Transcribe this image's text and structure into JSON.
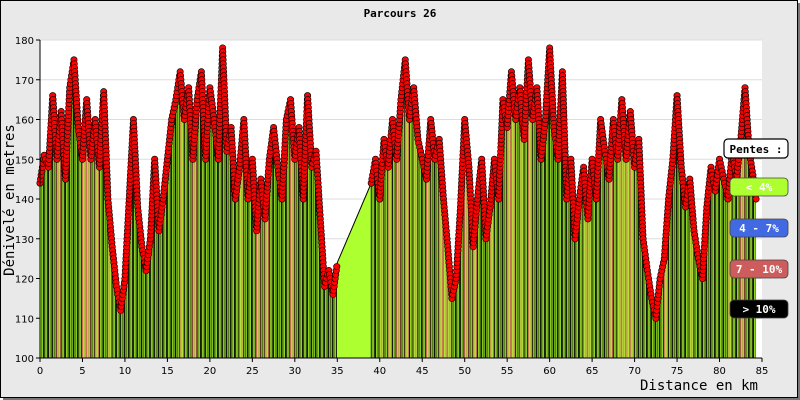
{
  "chart_data": {
    "type": "area",
    "title": "Parcours 26",
    "xlabel": "Distance en km",
    "ylabel": "Dénivelé en metres",
    "xlim": [
      0,
      85
    ],
    "ylim": [
      100,
      180
    ],
    "x_ticks": [
      0,
      5,
      10,
      15,
      20,
      25,
      30,
      35,
      40,
      45,
      50,
      55,
      60,
      65,
      70,
      75,
      80,
      85
    ],
    "y_ticks": [
      100,
      110,
      120,
      130,
      140,
      150,
      160,
      170,
      180
    ],
    "grid": true,
    "legend_position": "right",
    "legend": {
      "title": "Pentes :",
      "items": [
        {
          "label": "< 4%",
          "color": "#adff2f",
          "text_color": "#ffffff"
        },
        {
          "label": "4 - 7%",
          "color": "#4169e1",
          "text_color": "#ffffff"
        },
        {
          "label": "7 - 10%",
          "color": "#cd5c5c",
          "text_color": "#ffffff"
        },
        {
          "label": "> 10%",
          "color": "#000000",
          "text_color": "#ffffff"
        }
      ]
    },
    "series": [
      {
        "values": [
          [
            0,
            144
          ],
          [
            0.5,
            151
          ],
          [
            1,
            148
          ],
          [
            1.5,
            166
          ],
          [
            2,
            150
          ],
          [
            2.5,
            162
          ],
          [
            3,
            145
          ],
          [
            3.5,
            168
          ],
          [
            4,
            175
          ],
          [
            4.5,
            158
          ],
          [
            5,
            150
          ],
          [
            5.5,
            165
          ],
          [
            6,
            150
          ],
          [
            6.5,
            160
          ],
          [
            7,
            148
          ],
          [
            7.5,
            167
          ],
          [
            8,
            140
          ],
          [
            8.5,
            128
          ],
          [
            9,
            118
          ],
          [
            9.5,
            112
          ],
          [
            10,
            120
          ],
          [
            10.5,
            140
          ],
          [
            11,
            160
          ],
          [
            11.5,
            138
          ],
          [
            12,
            128
          ],
          [
            12.5,
            122
          ],
          [
            13,
            130
          ],
          [
            13.5,
            150
          ],
          [
            14,
            132
          ],
          [
            14.5,
            140
          ],
          [
            15,
            150
          ],
          [
            15.5,
            160
          ],
          [
            16,
            165
          ],
          [
            16.5,
            172
          ],
          [
            17,
            160
          ],
          [
            17.5,
            168
          ],
          [
            18,
            150
          ],
          [
            18.5,
            165
          ],
          [
            19,
            172
          ],
          [
            19.5,
            150
          ],
          [
            20,
            168
          ],
          [
            20.5,
            160
          ],
          [
            21,
            150
          ],
          [
            21.5,
            178
          ],
          [
            22,
            152
          ],
          [
            22.5,
            158
          ],
          [
            23,
            140
          ],
          [
            23.5,
            148
          ],
          [
            24,
            160
          ],
          [
            24.5,
            140
          ],
          [
            25,
            150
          ],
          [
            25.5,
            132
          ],
          [
            26,
            145
          ],
          [
            26.5,
            135
          ],
          [
            27,
            150
          ],
          [
            27.5,
            158
          ],
          [
            28,
            148
          ],
          [
            28.5,
            140
          ],
          [
            29,
            160
          ],
          [
            29.5,
            165
          ],
          [
            30,
            150
          ],
          [
            30.5,
            158
          ],
          [
            31,
            140
          ],
          [
            31.5,
            166
          ],
          [
            32,
            148
          ],
          [
            32.5,
            152
          ],
          [
            33,
            135
          ],
          [
            33.5,
            118
          ],
          [
            34,
            122
          ],
          [
            34.5,
            116
          ],
          [
            35,
            124
          ],
          [
            39,
            144
          ],
          [
            39.5,
            150
          ],
          [
            40,
            140
          ],
          [
            40.5,
            155
          ],
          [
            41,
            148
          ],
          [
            41.5,
            160
          ],
          [
            42,
            150
          ],
          [
            42.5,
            165
          ],
          [
            43,
            175
          ],
          [
            43.5,
            160
          ],
          [
            44,
            168
          ],
          [
            44.5,
            155
          ],
          [
            45,
            150
          ],
          [
            45.5,
            145
          ],
          [
            46,
            160
          ],
          [
            46.5,
            150
          ],
          [
            47,
            155
          ],
          [
            47.5,
            140
          ],
          [
            48,
            128
          ],
          [
            48.5,
            115
          ],
          [
            49,
            120
          ],
          [
            49.5,
            138
          ],
          [
            50,
            160
          ],
          [
            50.5,
            148
          ],
          [
            51,
            128
          ],
          [
            51.5,
            140
          ],
          [
            52,
            150
          ],
          [
            52.5,
            130
          ],
          [
            53,
            138
          ],
          [
            53.5,
            150
          ],
          [
            54,
            140
          ],
          [
            54.5,
            165
          ],
          [
            55,
            158
          ],
          [
            55.5,
            172
          ],
          [
            56,
            160
          ],
          [
            56.5,
            168
          ],
          [
            57,
            155
          ],
          [
            57.5,
            175
          ],
          [
            58,
            160
          ],
          [
            58.5,
            168
          ],
          [
            59,
            150
          ],
          [
            59.5,
            160
          ],
          [
            60,
            178
          ],
          [
            60.5,
            158
          ],
          [
            61,
            150
          ],
          [
            61.5,
            172
          ],
          [
            62,
            140
          ],
          [
            62.5,
            150
          ],
          [
            63,
            130
          ],
          [
            63.5,
            140
          ],
          [
            64,
            148
          ],
          [
            64.5,
            135
          ],
          [
            65,
            150
          ],
          [
            65.5,
            140
          ],
          [
            66,
            160
          ],
          [
            66.5,
            152
          ],
          [
            67,
            145
          ],
          [
            67.5,
            160
          ],
          [
            68,
            150
          ],
          [
            68.5,
            165
          ],
          [
            69,
            150
          ],
          [
            69.5,
            162
          ],
          [
            70,
            148
          ],
          [
            70.5,
            155
          ],
          [
            71,
            130
          ],
          [
            71.5,
            122
          ],
          [
            72,
            115
          ],
          [
            72.5,
            110
          ],
          [
            73,
            120
          ],
          [
            73.5,
            125
          ],
          [
            74,
            140
          ],
          [
            74.5,
            150
          ],
          [
            75,
            166
          ],
          [
            75.5,
            148
          ],
          [
            76,
            138
          ],
          [
            76.5,
            145
          ],
          [
            77,
            132
          ],
          [
            77.5,
            125
          ],
          [
            78,
            120
          ],
          [
            78.5,
            138
          ],
          [
            79,
            148
          ],
          [
            79.5,
            142
          ],
          [
            80,
            150
          ],
          [
            80.5,
            145
          ],
          [
            81,
            140
          ],
          [
            81.5,
            152
          ],
          [
            82,
            145
          ],
          [
            82.5,
            155
          ],
          [
            83,
            168
          ],
          [
            83.5,
            152
          ],
          [
            84,
            145
          ],
          [
            84.3,
            140
          ]
        ]
      }
    ]
  }
}
